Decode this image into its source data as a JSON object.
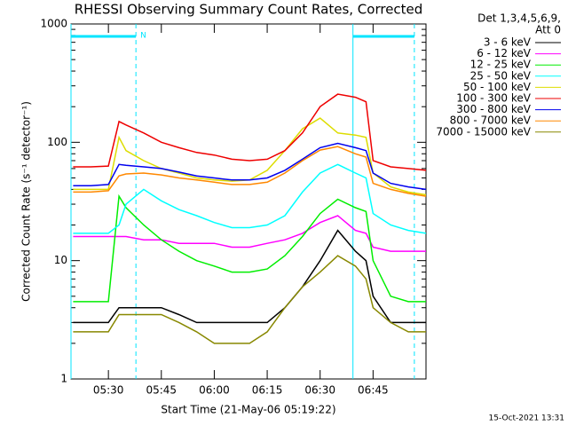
{
  "chart_data": {
    "type": "line",
    "title": "RHESSI Observing Summary Count Rates, Corrected",
    "xlabel": "Start Time (21-May-06 05:19:22)",
    "ylabel": "Corrected Count Rate (s⁻¹ detector⁻¹)",
    "legend_header": [
      "Det 1,3,4,5,6,9,",
      "Att 0"
    ],
    "footer": "15-Oct-2021 13:31",
    "log_y": true,
    "xlim": [
      319.4,
      420
    ],
    "ylim": [
      1,
      1000
    ],
    "yticks": [
      1,
      10,
      100,
      1000
    ],
    "xticks": [
      {
        "value": 330,
        "label": "05:30"
      },
      {
        "value": 345,
        "label": "05:45"
      },
      {
        "value": 360,
        "label": "06:00"
      },
      {
        "value": 375,
        "label": "06:15"
      },
      {
        "value": 390,
        "label": "06:30"
      },
      {
        "value": 405,
        "label": "06:45"
      }
    ],
    "intervals": [
      {
        "start": 319.4,
        "end": 337.8,
        "label": "N",
        "color": "#00e5ff"
      },
      {
        "start": 399.3,
        "end": 416.7,
        "color": "#00e5ff"
      }
    ],
    "x": [
      320,
      325,
      330,
      333,
      335,
      340,
      345,
      350,
      355,
      360,
      365,
      370,
      375,
      380,
      385,
      390,
      395,
      400,
      403,
      405,
      410,
      415,
      420
    ],
    "series": [
      {
        "name": "3 - 6 keV",
        "color": "#000000",
        "values": [
          3,
          3,
          3,
          4,
          4,
          4,
          4,
          3.5,
          3,
          3,
          3,
          3,
          3,
          4,
          6,
          10,
          18,
          12,
          10,
          5,
          3,
          3,
          3
        ]
      },
      {
        "name": "6 - 12 keV",
        "color": "#ff00ff",
        "values": [
          16,
          16,
          16,
          16,
          16,
          15,
          15,
          14,
          14,
          14,
          13,
          13,
          14,
          15,
          17,
          21,
          24,
          18,
          17,
          13,
          12,
          12,
          12
        ]
      },
      {
        "name": "12 - 25 keV",
        "color": "#00ee00",
        "values": [
          4.5,
          4.5,
          4.5,
          35,
          28,
          20,
          15,
          12,
          10,
          9,
          8,
          8,
          8.5,
          11,
          16,
          25,
          33,
          28,
          26,
          10,
          5,
          4.5,
          4.5
        ]
      },
      {
        "name": "25 - 50 keV",
        "color": "#00ffff",
        "values": [
          17,
          17,
          17,
          20,
          30,
          40,
          32,
          27,
          24,
          21,
          19,
          19,
          20,
          24,
          38,
          55,
          65,
          55,
          50,
          25,
          20,
          18,
          17
        ]
      },
      {
        "name": "50 - 100 keV",
        "color": "#dddd00",
        "values": [
          40,
          40,
          40,
          110,
          85,
          70,
          60,
          55,
          50,
          48,
          47,
          48,
          58,
          85,
          130,
          160,
          120,
          115,
          110,
          55,
          42,
          38,
          36
        ]
      },
      {
        "name": "100 - 300 keV",
        "color": "#ee0000",
        "values": [
          62,
          62,
          63,
          150,
          140,
          120,
          100,
          90,
          82,
          78,
          72,
          70,
          72,
          85,
          120,
          200,
          255,
          240,
          220,
          70,
          62,
          60,
          58
        ]
      },
      {
        "name": "300 - 800 keV",
        "color": "#0000ee",
        "values": [
          43,
          43,
          44,
          65,
          64,
          62,
          60,
          56,
          52,
          50,
          48,
          48,
          50,
          58,
          72,
          90,
          98,
          90,
          85,
          55,
          45,
          42,
          40
        ]
      },
      {
        "name": "800 - 7000 keV",
        "color": "#ff8800",
        "values": [
          38,
          38,
          39,
          52,
          54,
          55,
          53,
          50,
          48,
          46,
          44,
          44,
          46,
          55,
          70,
          86,
          92,
          80,
          75,
          45,
          40,
          37,
          35
        ]
      },
      {
        "name": "7000 - 15000 keV",
        "color": "#888800",
        "values": [
          2.5,
          2.5,
          2.5,
          3.5,
          3.5,
          3.5,
          3.5,
          3,
          2.5,
          2,
          2,
          2,
          2.5,
          4,
          6,
          8,
          11,
          9,
          7,
          4,
          3,
          2.5,
          2.5
        ]
      }
    ]
  }
}
